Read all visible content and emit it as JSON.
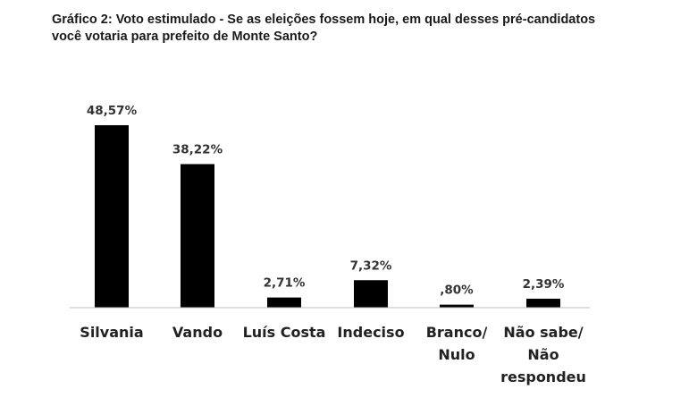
{
  "chart_data": {
    "type": "bar",
    "title": "Gráfico 2: Voto estimulado - Se as eleições fossem hoje, em qual desses pré-candidatos você votaria para prefeito de Monte Santo?",
    "categories": [
      [
        "Silvania"
      ],
      [
        "Vando"
      ],
      [
        "Luís Costa"
      ],
      [
        "Indeciso"
      ],
      [
        "Branco/",
        "Nulo"
      ],
      [
        "Não sabe/",
        "Não",
        "respondeu"
      ]
    ],
    "values": [
      48.57,
      38.22,
      2.71,
      7.32,
      0.8,
      2.39
    ],
    "data_labels": [
      "48,57%",
      "38,22%",
      "2,71%",
      "7,32%",
      ",80%",
      "2,39%"
    ],
    "ylim": [
      0,
      48.57
    ],
    "grid": false,
    "legend": "none",
    "colors": {
      "bar": "#000000",
      "axis": "#bfbfbf"
    }
  }
}
